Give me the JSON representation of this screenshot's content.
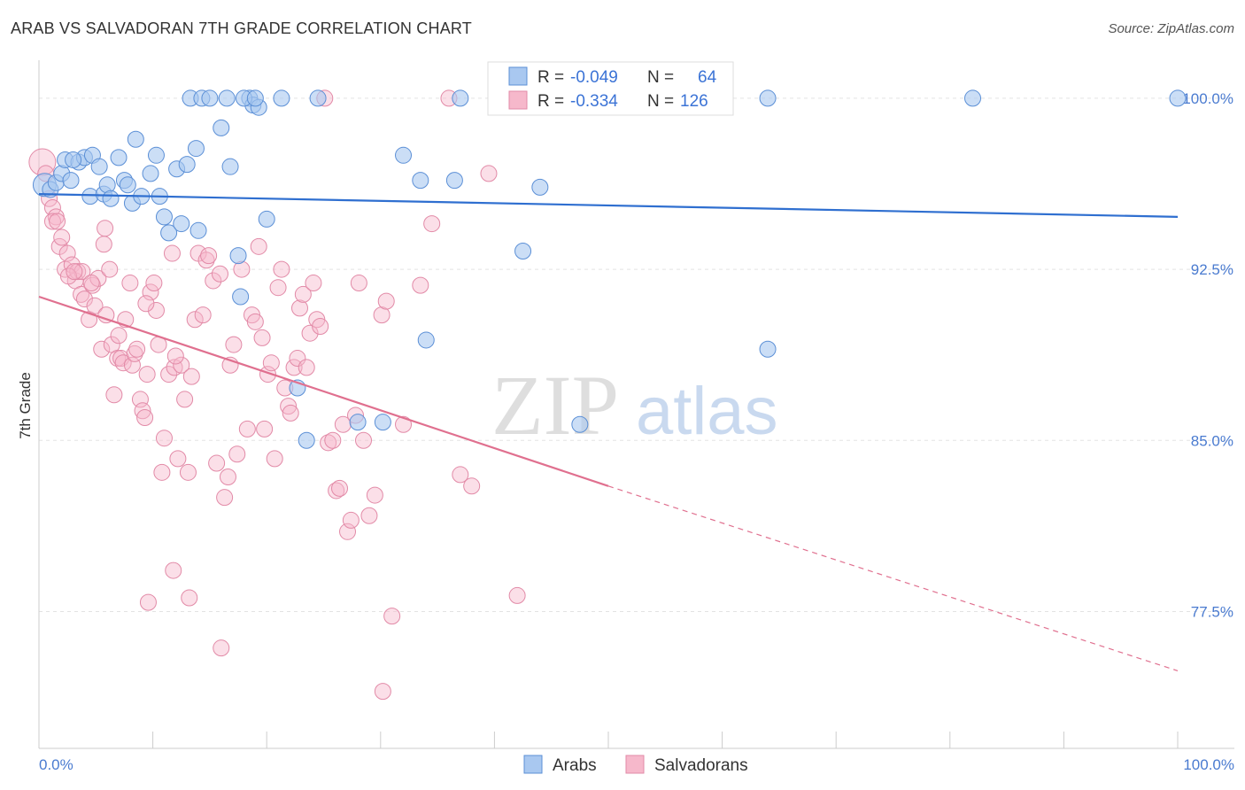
{
  "title": "ARAB VS SALVADORAN 7TH GRADE CORRELATION CHART",
  "source": "Source: ZipAtlas.com",
  "watermark": {
    "zip": "ZIP",
    "atlas": "atlas"
  },
  "colors": {
    "arabs_fill": "#a9c8f0",
    "arabs_stroke": "#5b8fd6",
    "arabs_line": "#2f6fd0",
    "salv_fill": "#f6b8cb",
    "salv_stroke": "#e28aa7",
    "salv_line": "#e0708f",
    "grid": "#e3e3e3",
    "axis_text": "#4a7bd0"
  },
  "legend": {
    "rows": [
      {
        "r_label": "R =",
        "r_value": "-0.049",
        "n_label": "N =",
        "n_value": "64"
      },
      {
        "r_label": "R =",
        "r_value": "-0.334",
        "n_label": "N =",
        "n_value": "126"
      }
    ]
  },
  "bottom_legend": [
    "Arabs",
    "Salvadorans"
  ],
  "chart_data": {
    "type": "scatter",
    "title": "ARAB VS SALVADORAN 7TH GRADE CORRELATION CHART",
    "xlabel": "",
    "ylabel": "7th Grade",
    "xlim": [
      0,
      100
    ],
    "ylim": [
      71.5,
      101.2
    ],
    "x_tick_labels": [
      "0.0%",
      "100.0%"
    ],
    "y_ticks": [
      77.5,
      85.0,
      92.5,
      100.0
    ],
    "y_tick_labels": [
      "77.5%",
      "85.0%",
      "92.5%",
      "100.0%"
    ],
    "grid": true,
    "series": [
      {
        "name": "Arabs",
        "r": -0.049,
        "n": 64,
        "trend": {
          "x": [
            0,
            100
          ],
          "y": [
            95.8,
            94.8
          ]
        },
        "points": [
          [
            0.5,
            96.2
          ],
          [
            1.0,
            96.0
          ],
          [
            1.5,
            96.3
          ],
          [
            2.0,
            96.7
          ],
          [
            2.3,
            97.3
          ],
          [
            2.8,
            96.4
          ],
          [
            3.5,
            97.2
          ],
          [
            4.0,
            97.4
          ],
          [
            4.5,
            95.7
          ],
          [
            3.0,
            97.3
          ],
          [
            4.7,
            97.5
          ],
          [
            5.3,
            97.0
          ],
          [
            5.7,
            95.8
          ],
          [
            6.0,
            96.2
          ],
          [
            6.3,
            95.6
          ],
          [
            7.0,
            97.4
          ],
          [
            7.5,
            96.4
          ],
          [
            7.8,
            96.2
          ],
          [
            8.2,
            95.4
          ],
          [
            8.5,
            98.2
          ],
          [
            9.0,
            95.7
          ],
          [
            9.8,
            96.7
          ],
          [
            10.3,
            97.5
          ],
          [
            10.6,
            95.7
          ],
          [
            11.0,
            94.8
          ],
          [
            11.4,
            94.1
          ],
          [
            12.1,
            96.9
          ],
          [
            12.5,
            94.5
          ],
          [
            13.0,
            97.1
          ],
          [
            13.3,
            100.0
          ],
          [
            13.8,
            97.8
          ],
          [
            14.0,
            94.2
          ],
          [
            14.3,
            100.0
          ],
          [
            15.0,
            100.0
          ],
          [
            16.0,
            98.7
          ],
          [
            16.5,
            100.0
          ],
          [
            16.8,
            97.0
          ],
          [
            17.5,
            93.1
          ],
          [
            17.7,
            91.3
          ],
          [
            18.5,
            100.0
          ],
          [
            18.8,
            99.7
          ],
          [
            19.3,
            99.6
          ],
          [
            20.0,
            94.7
          ],
          [
            21.3,
            100.0
          ],
          [
            22.7,
            87.3
          ],
          [
            23.5,
            85.0
          ],
          [
            24.5,
            100.0
          ],
          [
            28.0,
            85.8
          ],
          [
            30.2,
            85.8
          ],
          [
            32.0,
            97.5
          ],
          [
            33.5,
            96.4
          ],
          [
            34.0,
            89.4
          ],
          [
            36.5,
            96.4
          ],
          [
            37.0,
            100.0
          ],
          [
            42.5,
            93.3
          ],
          [
            44.0,
            96.1
          ],
          [
            47.5,
            85.7
          ],
          [
            60.0,
            100.0
          ],
          [
            64.0,
            100.0
          ],
          [
            64.0,
            89.0
          ],
          [
            82.0,
            100.0
          ],
          [
            100.0,
            100.0
          ],
          [
            18.0,
            100.0
          ],
          [
            19.0,
            100.0
          ]
        ]
      },
      {
        "name": "Salvadorans",
        "r": -0.334,
        "n": 126,
        "trend": {
          "x": [
            0,
            50
          ],
          "y": [
            91.3,
            83.0
          ]
        },
        "trend_dashed": {
          "x": [
            50,
            100
          ],
          "y": [
            83.0,
            74.9
          ]
        },
        "points": [
          [
            0.3,
            97.2
          ],
          [
            0.6,
            96.7
          ],
          [
            0.9,
            95.6
          ],
          [
            1.2,
            95.2
          ],
          [
            1.5,
            94.8
          ],
          [
            1.2,
            94.6
          ],
          [
            1.8,
            93.5
          ],
          [
            2.0,
            93.9
          ],
          [
            2.3,
            92.5
          ],
          [
            2.5,
            93.2
          ],
          [
            2.9,
            92.7
          ],
          [
            3.2,
            92.0
          ],
          [
            3.4,
            92.4
          ],
          [
            3.7,
            91.4
          ],
          [
            3.8,
            92.4
          ],
          [
            4.0,
            91.2
          ],
          [
            4.4,
            90.3
          ],
          [
            4.7,
            91.8
          ],
          [
            4.9,
            90.9
          ],
          [
            5.2,
            92.1
          ],
          [
            5.5,
            89.0
          ],
          [
            5.7,
            93.6
          ],
          [
            5.9,
            90.5
          ],
          [
            6.2,
            92.5
          ],
          [
            6.4,
            89.2
          ],
          [
            6.6,
            87.0
          ],
          [
            6.9,
            88.6
          ],
          [
            7.2,
            88.6
          ],
          [
            7.4,
            88.4
          ],
          [
            7.6,
            90.3
          ],
          [
            8.0,
            91.9
          ],
          [
            8.2,
            88.3
          ],
          [
            8.4,
            88.8
          ],
          [
            8.6,
            89.0
          ],
          [
            8.9,
            86.8
          ],
          [
            9.1,
            86.3
          ],
          [
            9.3,
            86.0
          ],
          [
            9.5,
            87.9
          ],
          [
            9.8,
            91.5
          ],
          [
            10.1,
            91.9
          ],
          [
            10.3,
            90.7
          ],
          [
            10.5,
            89.2
          ],
          [
            10.8,
            83.6
          ],
          [
            11.0,
            85.1
          ],
          [
            11.4,
            87.9
          ],
          [
            11.7,
            93.2
          ],
          [
            11.9,
            88.2
          ],
          [
            12.2,
            84.2
          ],
          [
            12.5,
            88.3
          ],
          [
            12.8,
            86.8
          ],
          [
            13.1,
            83.6
          ],
          [
            13.4,
            87.8
          ],
          [
            13.7,
            90.3
          ],
          [
            14.0,
            93.2
          ],
          [
            14.4,
            90.5
          ],
          [
            14.7,
            92.9
          ],
          [
            14.9,
            93.1
          ],
          [
            15.3,
            92.0
          ],
          [
            15.6,
            84.0
          ],
          [
            15.9,
            92.3
          ],
          [
            16.3,
            82.5
          ],
          [
            16.6,
            83.4
          ],
          [
            16.8,
            88.3
          ],
          [
            17.1,
            89.2
          ],
          [
            17.4,
            84.4
          ],
          [
            17.8,
            92.5
          ],
          [
            18.3,
            85.5
          ],
          [
            18.7,
            90.5
          ],
          [
            19.0,
            90.2
          ],
          [
            19.3,
            93.5
          ],
          [
            19.6,
            89.5
          ],
          [
            19.8,
            85.5
          ],
          [
            20.1,
            87.9
          ],
          [
            20.4,
            88.4
          ],
          [
            20.7,
            84.2
          ],
          [
            21.0,
            91.7
          ],
          [
            21.3,
            92.5
          ],
          [
            21.6,
            87.3
          ],
          [
            21.9,
            86.5
          ],
          [
            22.1,
            86.2
          ],
          [
            22.4,
            88.2
          ],
          [
            22.7,
            88.6
          ],
          [
            22.9,
            90.8
          ],
          [
            23.2,
            91.4
          ],
          [
            23.5,
            88.2
          ],
          [
            23.8,
            89.7
          ],
          [
            24.1,
            91.9
          ],
          [
            24.4,
            90.3
          ],
          [
            24.7,
            90.0
          ],
          [
            25.1,
            100.0
          ],
          [
            25.4,
            84.9
          ],
          [
            25.8,
            85.0
          ],
          [
            26.1,
            82.8
          ],
          [
            26.4,
            82.9
          ],
          [
            26.7,
            85.7
          ],
          [
            27.1,
            81.0
          ],
          [
            27.4,
            81.5
          ],
          [
            27.8,
            86.1
          ],
          [
            28.1,
            91.9
          ],
          [
            28.5,
            85.0
          ],
          [
            29.0,
            81.7
          ],
          [
            29.5,
            82.6
          ],
          [
            30.1,
            90.5
          ],
          [
            30.5,
            91.1
          ],
          [
            31.0,
            77.3
          ],
          [
            32.0,
            85.7
          ],
          [
            33.5,
            91.8
          ],
          [
            34.5,
            94.5
          ],
          [
            37.0,
            83.5
          ],
          [
            38.0,
            83.0
          ],
          [
            39.5,
            96.7
          ],
          [
            42.0,
            78.2
          ],
          [
            9.6,
            77.9
          ],
          [
            11.8,
            79.3
          ],
          [
            13.2,
            78.1
          ],
          [
            16.0,
            75.9
          ],
          [
            30.2,
            74.0
          ],
          [
            5.8,
            94.3
          ],
          [
            2.6,
            92.2
          ],
          [
            1.6,
            94.6
          ],
          [
            3.1,
            92.4
          ],
          [
            4.6,
            91.9
          ],
          [
            7.0,
            89.6
          ],
          [
            9.4,
            91.0
          ],
          [
            12.0,
            88.7
          ],
          [
            36.0,
            100.0
          ]
        ]
      }
    ]
  }
}
